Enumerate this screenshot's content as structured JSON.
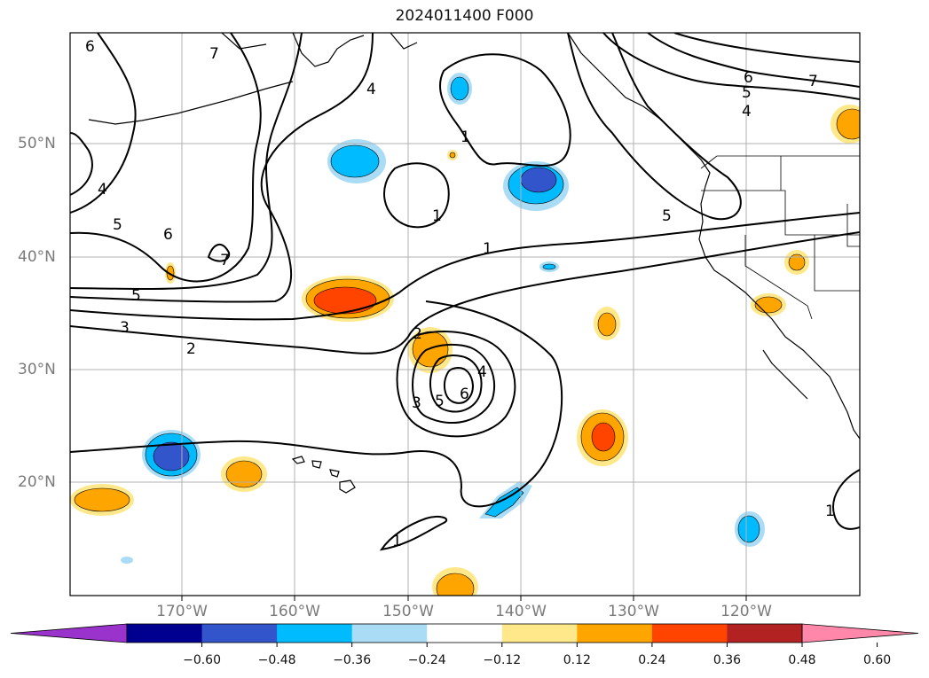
{
  "title": "2024011400 F000",
  "latitude_labels": [
    "50°N",
    "40°N",
    "30°N",
    "20°N"
  ],
  "longitude_labels": [
    "170°W",
    "160°W",
    "150°W",
    "140°W",
    "130°W",
    "120°W"
  ],
  "colorbar": {
    "tick_labels": [
      "−0.60",
      "−0.48",
      "−0.36",
      "−0.24",
      "−0.12",
      "0.12",
      "0.24",
      "0.36",
      "0.48",
      "0.60"
    ],
    "colors": [
      "#9933cc",
      "#000090",
      "#3355cc",
      "#00bbff",
      "#aaddf5",
      "#ffffff",
      "#ffe88a",
      "#ffa500",
      "#ff4400",
      "#b22222",
      "#ff88aa"
    ],
    "extend": "both"
  },
  "contour_labels": [
    "6",
    "7",
    "4",
    "5",
    "6",
    "7",
    "4",
    "5",
    "1",
    "1",
    "1",
    "6",
    "7",
    "5",
    "4",
    "5",
    "3",
    "2",
    "2",
    "3",
    "4",
    "5",
    "6",
    "1",
    "1"
  ],
  "shade_colors": {
    "neg_light": "#aaddf5",
    "neg_mid": "#00bbff",
    "neg_strong": "#3355cc",
    "pos_light": "#ffe88a",
    "pos_mid": "#ffa500",
    "pos_strong": "#ff4400"
  }
}
